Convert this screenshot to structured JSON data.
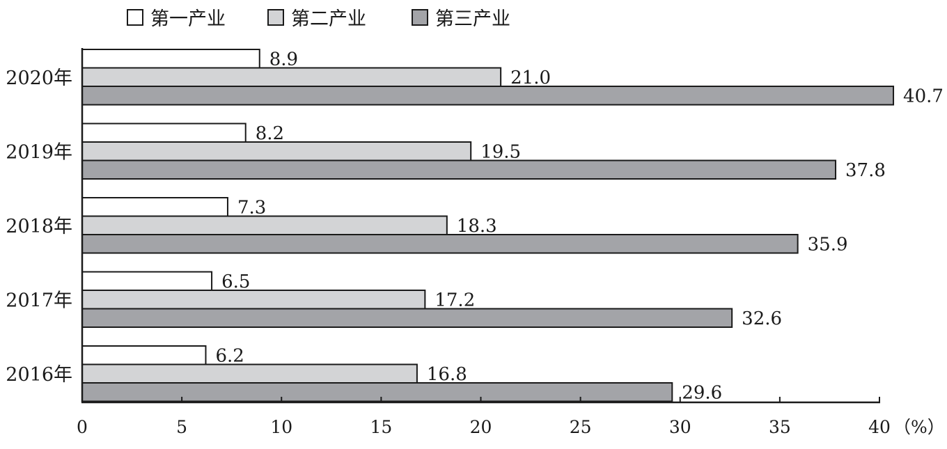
{
  "chart_data": {
    "type": "bar",
    "orientation": "horizontal",
    "categories": [
      "2020年",
      "2019年",
      "2018年",
      "2017年",
      "2016年"
    ],
    "series": [
      {
        "name": "第一产业",
        "values": [
          8.9,
          8.2,
          7.3,
          6.5,
          6.2
        ],
        "color": "#ffffff"
      },
      {
        "name": "第二产业",
        "values": [
          21.0,
          19.5,
          18.3,
          17.2,
          16.8
        ],
        "color": "#d3d4d6"
      },
      {
        "name": "第三产业",
        "values": [
          40.7,
          37.8,
          35.9,
          32.6,
          29.6
        ],
        "color": "#a3a4a8"
      }
    ],
    "value_labels": [
      [
        "8.9",
        "21.0",
        "40.7"
      ],
      [
        "8.2",
        "19.5",
        "37.8"
      ],
      [
        "7.3",
        "18.3",
        "35.9"
      ],
      [
        "6.5",
        "17.2",
        "32.6"
      ],
      [
        "6.2",
        "16.8",
        "29.6"
      ]
    ],
    "xticks": [
      0,
      5,
      10,
      15,
      20,
      25,
      30,
      35,
      40
    ],
    "xlim": [
      0,
      40
    ],
    "unit": "（%）",
    "legend_position": "top",
    "grid": false
  }
}
